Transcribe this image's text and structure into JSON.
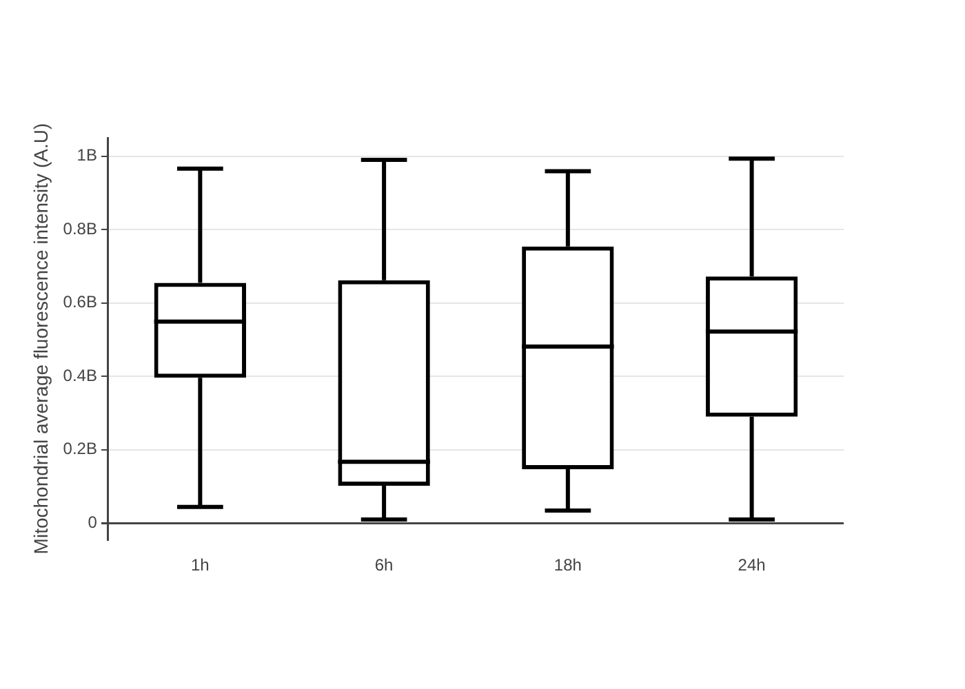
{
  "chart_data": {
    "type": "box",
    "ylabel": "Mitochondrial average fluorescence intensity (A.U)",
    "categories": [
      "1h",
      "6h",
      "18h",
      "24h"
    ],
    "color": "#000000",
    "boxes": [
      {
        "low": 44000000,
        "q1": 396000000,
        "median": 549000000,
        "q3": 655000000,
        "high": 966000000
      },
      {
        "low": 10000000,
        "q1": 102000000,
        "median": 167000000,
        "q3": 662000000,
        "high": 990000000
      },
      {
        "low": 34000000,
        "q1": 147000000,
        "median": 481000000,
        "q3": 754000000,
        "high": 959000000
      },
      {
        "low": 10000000,
        "q1": 290000000,
        "median": 522000000,
        "q3": 672000000,
        "high": 993000000
      }
    ],
    "ylim": [
      -45000000,
      1050000000
    ],
    "yticks": [
      0,
      {
        "value": 200000000,
        "label": "0.2B"
      },
      {
        "value": 400000000,
        "label": "0.4B"
      },
      {
        "value": 600000000,
        "label": "0.6B"
      },
      {
        "value": 800000000,
        "label": "0.8B"
      },
      {
        "value": 1000000000,
        "label": "1B"
      }
    ],
    "grid": "y",
    "legend": false
  }
}
